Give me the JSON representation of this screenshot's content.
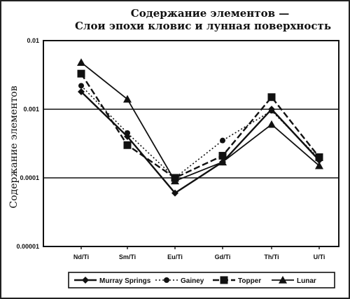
{
  "chart_data": {
    "type": "line",
    "title": "Содержание элементов —",
    "subtitle": "Слои эпохи кловис и лунная поверхность",
    "ylabel": "Содержание элементов",
    "xlabel": "",
    "y_scale": "log",
    "ylim": [
      1e-05,
      0.01
    ],
    "y_ticks": [
      "0.01",
      "0.001",
      "0.0001",
      "0.00001"
    ],
    "grid": "horizontal",
    "legend": "bottom",
    "categories": [
      "Nd/Ti",
      "Sm/Ti",
      "Eu/Ti",
      "Gd/Ti",
      "Th/Ti",
      "U/Ti"
    ],
    "series": [
      {
        "name": "Murray Springs",
        "marker": "diamond",
        "dash": "solid",
        "width": 2.4,
        "values": [
          0.0018,
          0.0004,
          6e-05,
          0.00017,
          0.001,
          0.00018
        ]
      },
      {
        "name": "Gainey",
        "marker": "circle",
        "dash": "dotted",
        "width": 1.6,
        "values": [
          0.0022,
          0.00045,
          0.0001,
          0.00035,
          0.00095,
          0.00019
        ]
      },
      {
        "name": "Topper",
        "marker": "square",
        "dash": "dashed",
        "width": 2.4,
        "values": [
          0.0033,
          0.0003,
          0.0001,
          0.00021,
          0.0015,
          0.0002
        ]
      },
      {
        "name": "Lunar",
        "marker": "triangle",
        "dash": "solid",
        "width": 1.8,
        "values": [
          0.0048,
          0.0014,
          9e-05,
          0.00017,
          0.0006,
          0.00015
        ]
      }
    ],
    "colors": {
      "ink": "#111111",
      "grid": "#111111",
      "background": "#ffffff"
    }
  }
}
